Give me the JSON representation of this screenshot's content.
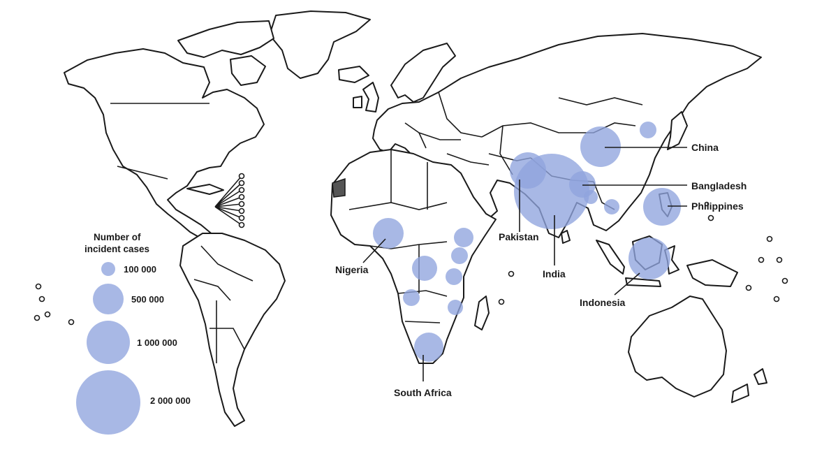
{
  "colors": {
    "bubble": "#8fa4de",
    "land_stroke": "#1a1a1a",
    "highlight_territory": "#555555"
  },
  "legend": {
    "title_line1": "Number of",
    "title_line2": "incident cases",
    "entries": [
      {
        "label": "100 000",
        "value": 100000
      },
      {
        "label": "500 000",
        "value": 500000
      },
      {
        "label": "1 000 000",
        "value": 1000000
      },
      {
        "label": "2 000 000",
        "value": 2000000
      }
    ]
  },
  "labels": {
    "china": "China",
    "bangladesh": "Bangladesh",
    "philippines": "Philippines",
    "pakistan": "Pakistan",
    "india": "India",
    "indonesia": "Indonesia",
    "nigeria": "Nigeria",
    "south_africa": "South Africa"
  },
  "map_data": {
    "metric": "incident cases",
    "bubbles": [
      {
        "country": "India",
        "labelled": true
      },
      {
        "country": "China",
        "labelled": true
      },
      {
        "country": "Indonesia",
        "labelled": true
      },
      {
        "country": "Pakistan",
        "labelled": true
      },
      {
        "country": "Philippines",
        "labelled": true
      },
      {
        "country": "Bangladesh",
        "labelled": true
      },
      {
        "country": "Nigeria",
        "labelled": true
      },
      {
        "country": "South Africa",
        "labelled": true
      }
    ]
  }
}
